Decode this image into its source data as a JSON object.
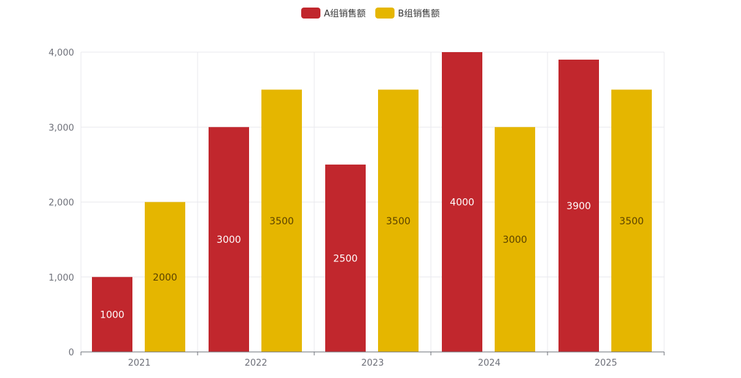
{
  "legend": [
    {
      "label": "A组销售额",
      "color": "#c1272d"
    },
    {
      "label": "B组销售额",
      "color": "#e5b600"
    }
  ],
  "chart_data": {
    "type": "bar",
    "title": "",
    "xlabel": "",
    "ylabel": "",
    "categories": [
      "2021",
      "2022",
      "2023",
      "2024",
      "2025"
    ],
    "series": [
      {
        "name": "A组销售额",
        "values": [
          1000,
          3000,
          2500,
          4000,
          3900
        ],
        "color": "#c1272d",
        "label_color": "#ffffff"
      },
      {
        "name": "B组销售额",
        "values": [
          2000,
          3500,
          3500,
          3000,
          3500
        ],
        "color": "#e5b600",
        "label_color": "#5a4200"
      }
    ],
    "ylim": [
      0,
      4000
    ],
    "yticks": [
      0,
      1000,
      2000,
      3000,
      4000
    ],
    "ytick_labels": [
      "0",
      "1,000",
      "2,000",
      "3,000",
      "4,000"
    ],
    "grid": true,
    "legend_position": "top-center",
    "data_labels": "inside-center"
  }
}
